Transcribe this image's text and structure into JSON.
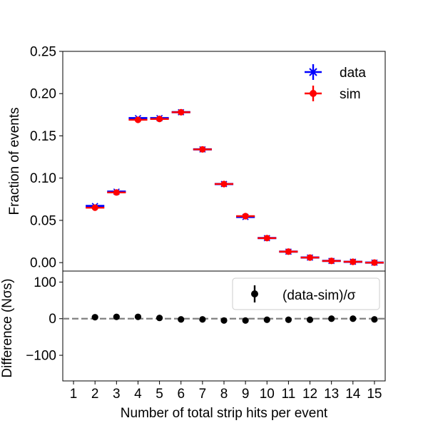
{
  "chart_data": [
    {
      "type": "scatter",
      "panel": "top",
      "xlim": [
        0.5,
        15.5
      ],
      "ylim": [
        -0.01,
        0.25
      ],
      "ylabel": "Fraction of events",
      "ytick_labels": [
        "0.00",
        "0.05",
        "0.10",
        "0.15",
        "0.20",
        "0.25"
      ],
      "ytick_values": [
        0,
        0.05,
        0.1,
        0.15,
        0.2,
        0.25
      ],
      "legend_position": "top-right",
      "x": [
        2,
        3,
        4,
        5,
        6,
        7,
        8,
        9,
        10,
        11,
        12,
        13,
        14,
        15
      ],
      "x_halfwidth": 0.5,
      "series": [
        {
          "name": "data",
          "color": "#0000ff",
          "marker": "x",
          "values": [
            0.067,
            0.084,
            0.171,
            0.171,
            0.178,
            0.134,
            0.093,
            0.054,
            0.029,
            0.013,
            0.006,
            0.002,
            0.001,
            0.0
          ]
        },
        {
          "name": "sim",
          "color": "#ff0000",
          "marker": "circle",
          "values": [
            0.065,
            0.083,
            0.169,
            0.17,
            0.178,
            0.134,
            0.093,
            0.055,
            0.029,
            0.013,
            0.006,
            0.002,
            0.001,
            0.0
          ]
        }
      ]
    },
    {
      "type": "scatter",
      "panel": "bottom",
      "xlim": [
        0.5,
        15.5
      ],
      "ylim": [
        -170,
        130
      ],
      "xlabel": "Number of total strip hits per event",
      "ylabel": "Difference (Nσs)",
      "ytick_labels": [
        "−100",
        "0",
        "100"
      ],
      "ytick_values": [
        -100,
        0,
        100
      ],
      "xtick_labels": [
        "1",
        "2",
        "3",
        "4",
        "5",
        "6",
        "7",
        "8",
        "9",
        "10",
        "11",
        "12",
        "13",
        "14",
        "15"
      ],
      "xtick_values": [
        1,
        2,
        3,
        4,
        5,
        6,
        7,
        8,
        9,
        10,
        11,
        12,
        13,
        14,
        15
      ],
      "reference_line": 0,
      "reference_color": "#808080",
      "legend_position": "top-right",
      "x": [
        2,
        3,
        4,
        5,
        6,
        7,
        8,
        9,
        10,
        11,
        12,
        13,
        14,
        15
      ],
      "series": [
        {
          "name": "(data-sim)/σ",
          "color": "#000000",
          "marker": "circle",
          "values": [
            4,
            5,
            5,
            2,
            -2,
            -2,
            -5,
            -5,
            -3,
            -3,
            -3,
            0,
            0,
            -2
          ]
        }
      ]
    }
  ]
}
